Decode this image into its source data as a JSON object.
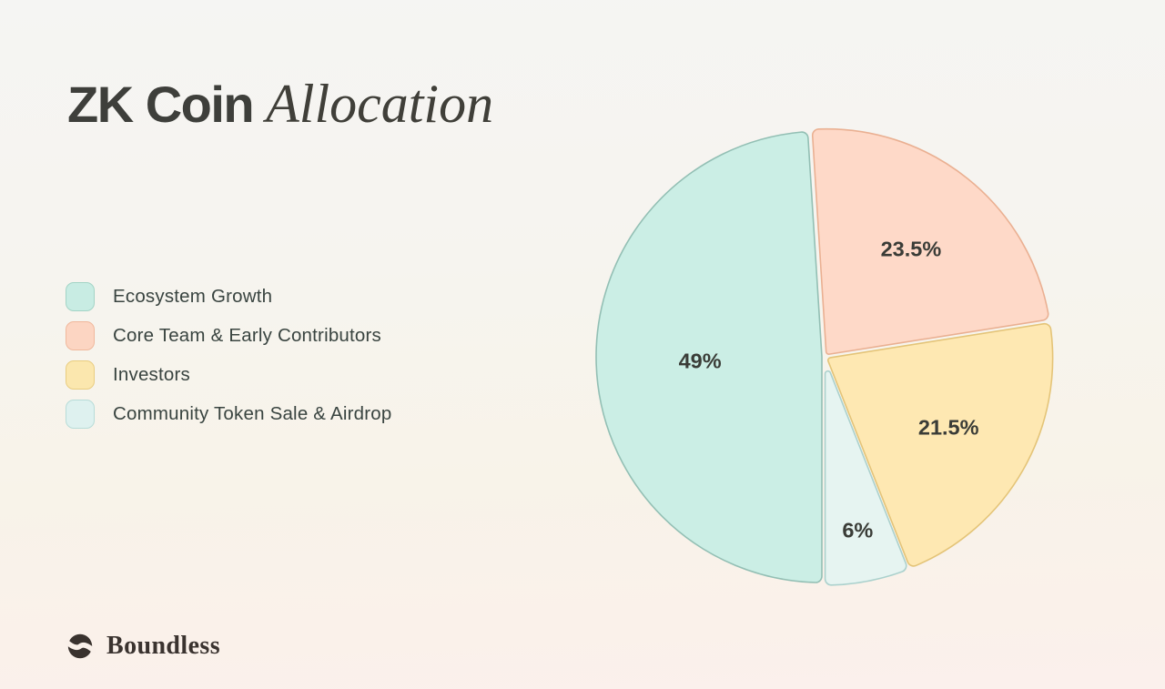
{
  "title": {
    "text_regular": "ZK Coin",
    "text_italic": "Allocation"
  },
  "legend": {
    "position": "left",
    "items": [
      {
        "label": "Ecosystem Growth",
        "fill": "#c8ece3",
        "border": "#a3d4c6"
      },
      {
        "label": "Core Team & Early Contributors",
        "fill": "#fcd5c2",
        "border": "#f0b89c"
      },
      {
        "label": "Investors",
        "fill": "#fbe7ae",
        "border": "#e9cd80"
      },
      {
        "label": "Community Token Sale & Airdrop",
        "fill": "#def1ef",
        "border": "#b7dcd8"
      }
    ]
  },
  "chart_data": {
    "type": "pie",
    "title": "ZK Coin Allocation",
    "categories": [
      "Ecosystem Growth",
      "Core Team & Early Contributors",
      "Investors",
      "Community Token Sale & Airdrop"
    ],
    "values": [
      49,
      23.5,
      21.5,
      6
    ],
    "slices": [
      {
        "label": "Ecosystem Growth",
        "value": 49,
        "display": "49%",
        "fill": "#cbeee5",
        "stroke": "#93bfb4",
        "label_radius": 0.54
      },
      {
        "label": "Core Team & Early Contributors",
        "value": 23.5,
        "display": "23.5%",
        "fill": "#fed9c8",
        "stroke": "#eab092",
        "label_radius": 0.6
      },
      {
        "label": "Investors",
        "value": 21.5,
        "display": "21.5%",
        "fill": "#fee8b2",
        "stroke": "#e4c478",
        "label_radius": 0.62
      },
      {
        "label": "Community Token Sale & Airdrop",
        "value": 6,
        "display": "6%",
        "fill": "#e6f4f1",
        "stroke": "#abd1cd",
        "label_radius": 0.77
      }
    ],
    "start_angle_deg": 180,
    "direction": "clockwise",
    "legend_position": "left",
    "label_color": "#3a3c37",
    "grid": false
  },
  "footer": {
    "brand": "Boundless"
  },
  "colors": {
    "background_top": "#f5f5f3",
    "background_bottom": "#fbf0ec",
    "title_text": "#3e3f3b",
    "legend_text": "#394440",
    "brand_text": "#3a332f"
  }
}
